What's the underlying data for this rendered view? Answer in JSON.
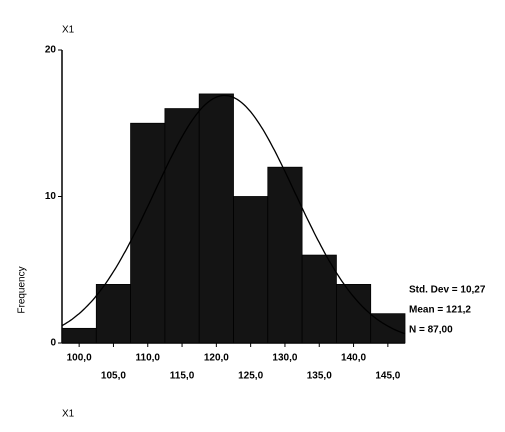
{
  "chart_data": {
    "type": "histogram",
    "title": "X1",
    "x_label": "X1",
    "y_label": "Frequency",
    "bins": [
      97.5,
      102.5,
      107.5,
      112.5,
      117.5,
      122.5,
      127.5,
      132.5,
      137.5,
      142.5,
      147.5
    ],
    "values": [
      1,
      4,
      15,
      16,
      17,
      10,
      12,
      6,
      4,
      2
    ],
    "color": "#141414",
    "xlim": [
      97.5,
      147.5
    ],
    "xticks": [
      {
        "value": 100,
        "label": "100,0"
      },
      {
        "value": 105,
        "label": "105,0"
      },
      {
        "value": 110,
        "label": "110,0"
      },
      {
        "value": 115,
        "label": "115,0"
      },
      {
        "value": 120,
        "label": "120,0"
      },
      {
        "value": 125,
        "label": "125,0"
      },
      {
        "value": 130,
        "label": "130,0"
      },
      {
        "value": 135,
        "label": "135,0"
      },
      {
        "value": 140,
        "label": "140,0"
      },
      {
        "value": 145,
        "label": "145,0"
      }
    ],
    "ylim": [
      0,
      20
    ],
    "yticks": [
      0,
      10,
      20
    ],
    "stats": {
      "std_dev": {
        "value": 10.27,
        "label": "Std. Dev = 10,27"
      },
      "mean": {
        "value": 121.2,
        "label": "Mean = 121,2"
      },
      "n": {
        "value": 87,
        "label": "N = 87,00"
      }
    }
  }
}
